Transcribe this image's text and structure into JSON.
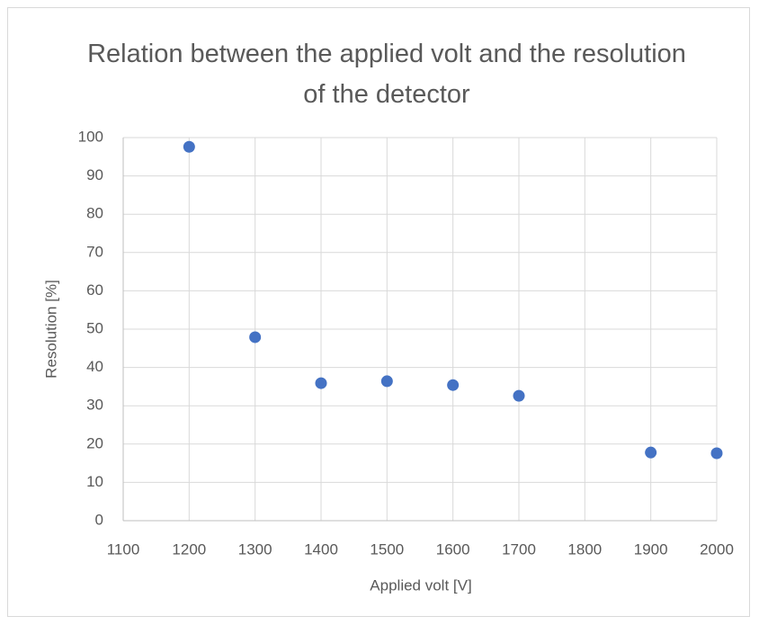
{
  "chart_data": {
    "type": "scatter",
    "title": "Relation between the applied volt and the resolution of the detector",
    "x_label": "Applied volt [V]",
    "y_label": "Resolution [%]",
    "x": [
      1200,
      1300,
      1400,
      1500,
      1600,
      1700,
      1900,
      2000
    ],
    "values": [
      97.6,
      47.9,
      35.9,
      36.4,
      35.4,
      32.6,
      17.8,
      17.6
    ],
    "color": "#4472c4",
    "xlim": [
      1100,
      2000
    ],
    "xticks": [
      1100,
      1200,
      1300,
      1400,
      1500,
      1600,
      1700,
      1800,
      1900,
      2000
    ],
    "ylim": [
      0,
      100
    ],
    "yticks": [
      0,
      10,
      20,
      30,
      40,
      50,
      60,
      70,
      80,
      90,
      100
    ],
    "grid": true
  }
}
